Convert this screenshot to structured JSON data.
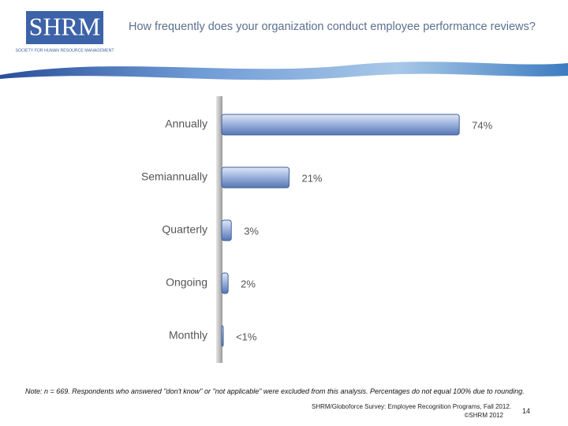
{
  "header": {
    "logo": "SHRM",
    "logo_subtitle": "SOCIETY FOR HUMAN RESOURCE MANAGEMENT",
    "title": "How frequently does your organization conduct employee performance reviews?"
  },
  "chart_data": {
    "type": "bar",
    "orientation": "horizontal",
    "categories": [
      "Annually",
      "Semiannually",
      "Quarterly",
      "Ongoing",
      "Monthly"
    ],
    "values": [
      74,
      21,
      3,
      2,
      0.5
    ],
    "value_labels": [
      "74%",
      "21%",
      "3%",
      "2%",
      "<1%"
    ],
    "color": "#7e9ccf"
  },
  "footer": {
    "note": "Note: n = 669. Respondents who answered \"don't know\" or \"not applicable\" were excluded from this analysis. Percentages do not equal 100% due to rounding.",
    "source": "SHRM/Globoforce Survey: Employee Recognition Programs, Fall 2012.",
    "copyright": "©SHRM 2012",
    "page": "14"
  }
}
